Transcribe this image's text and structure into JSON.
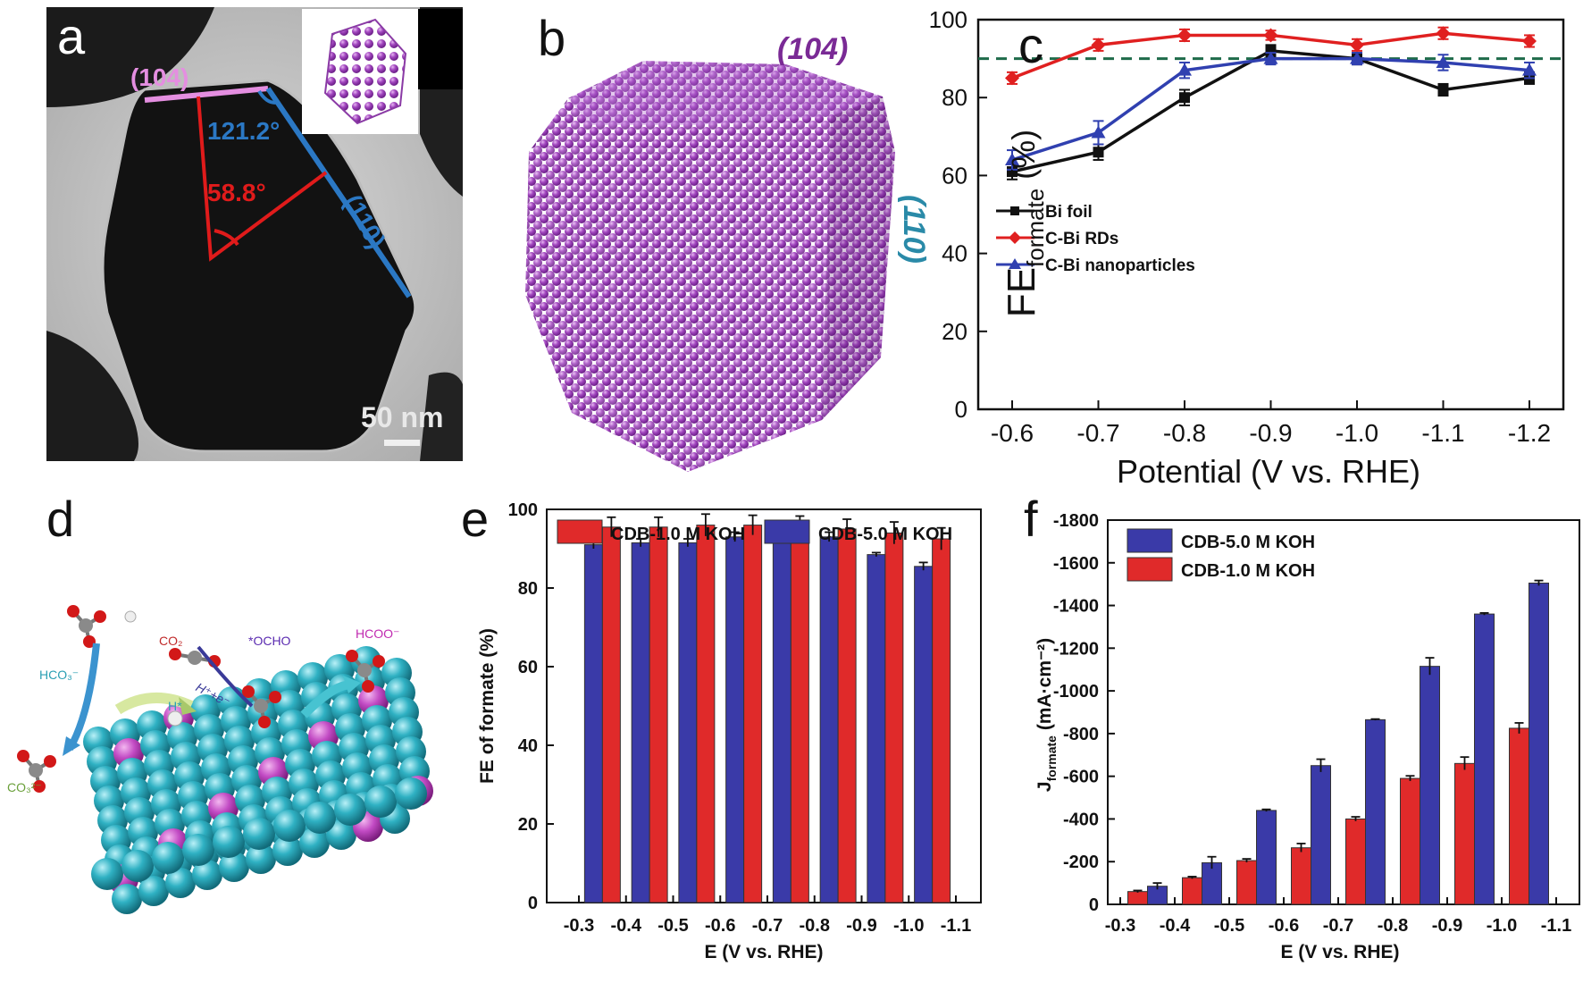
{
  "panels": {
    "a": {
      "letter": "a",
      "facet_top": "(104)",
      "facet_side": "(110)",
      "angle_obtuse": "121.2°",
      "angle_acute": "58.8°",
      "scale": "50 nm",
      "colors": {
        "facet_top": "#e48ee0",
        "facet_side": "#2b78c4",
        "angle": "#e01b1b"
      }
    },
    "b": {
      "letter": "b",
      "facet_top": "(104)",
      "facet_side": "(110)",
      "colors": {
        "sphere": "#9b3fb5",
        "top": "#7a2a95",
        "side": "#2a8aa8"
      }
    },
    "d": {
      "letter": "d",
      "labels": {
        "hco3": "HCO₃⁻",
        "co2": "CO₂",
        "ocho": "*OCHO",
        "hcoo": "HCOO⁻",
        "h": "H*",
        "proton": "H⁺+e⁻",
        "co3": "CO₃²⁻"
      },
      "colors": {
        "surface": "#27a6b8",
        "site": "#b845b8",
        "oxygen": "#d21818",
        "carbon": "#8a8a8a"
      }
    }
  },
  "chart_data": [
    {
      "panel": "c",
      "type": "line",
      "title": "",
      "xlabel": "Potential (V vs. RHE)",
      "ylabel_main": "FE",
      "ylabel_sub": "formate",
      "ylabel_unit": "(%)",
      "categories": [
        "-0.6",
        "-0.7",
        "-0.8",
        "-0.9",
        "-1.0",
        "-1.1",
        "-1.2"
      ],
      "ylim": [
        0,
        100
      ],
      "yticks": [
        0,
        20,
        40,
        60,
        80,
        100
      ],
      "reference_line": 90,
      "legend_position": "center-left",
      "series": [
        {
          "name": "Bi foil",
          "color": "#111111",
          "marker": "square",
          "values": [
            61,
            66,
            80,
            92,
            90,
            82,
            85
          ],
          "errors": [
            2,
            2,
            2,
            1.5,
            1.5,
            1.5,
            1.5
          ]
        },
        {
          "name": "C-Bi RDs",
          "color": "#e02020",
          "marker": "diamond",
          "values": [
            85,
            93.5,
            96,
            96,
            93.5,
            96.5,
            94.5
          ],
          "errors": [
            1.5,
            1.5,
            1.5,
            1.2,
            1.5,
            1.5,
            1.5
          ]
        },
        {
          "name": "C-Bi nanoparticles",
          "color": "#3040b0",
          "marker": "triangle",
          "values": [
            64,
            71,
            87,
            90,
            90,
            89,
            87
          ],
          "errors": [
            2.5,
            3,
            2,
            1.5,
            1.5,
            2,
            2
          ]
        }
      ]
    },
    {
      "panel": "e",
      "type": "bar",
      "xlabel": "E (V vs. RHE)",
      "ylabel": "FE of formate (%)",
      "xticks": [
        "-0.3",
        "-0.4",
        "-0.5",
        "-0.6",
        "-0.7",
        "-0.8",
        "-0.9",
        "-1.0",
        "-1.1"
      ],
      "ylim": [
        0,
        100
      ],
      "yticks": [
        0,
        20,
        40,
        60,
        80,
        100
      ],
      "legend_position": "top",
      "series": [
        {
          "name": "CDB-5.0 M KOH",
          "color": "#3a3aa8",
          "values": [
            91,
            91.5,
            91.5,
            93,
            94.5,
            93,
            88.5,
            85.5
          ],
          "errors": [
            1,
            1,
            1,
            1.2,
            0.5,
            1.2,
            0.5,
            1
          ]
        },
        {
          "name": "CDB-1.0 M KOH",
          "color": "#e02a2a",
          "values": [
            95.5,
            95.5,
            96,
            96,
            95.5,
            95,
            94,
            92.5
          ],
          "errors": [
            2.5,
            2.5,
            2.8,
            2.5,
            2.8,
            2.5,
            2.8,
            2.8
          ]
        }
      ],
      "legend_order": [
        "CDB-1.0 M KOH",
        "CDB-5.0 M KOH"
      ]
    },
    {
      "panel": "f",
      "type": "bar",
      "xlabel": "E (V vs. RHE)",
      "ylabel_main": "J",
      "ylabel_sub": "formate",
      "ylabel_unit": " (mA·cm⁻²)",
      "xticks": [
        "-0.3",
        "-0.4",
        "-0.5",
        "-0.6",
        "-0.7",
        "-0.8",
        "-0.9",
        "-1.0",
        "-1.1"
      ],
      "ylim": [
        0,
        -1800
      ],
      "yticks": [
        "0",
        "-200",
        "-400",
        "-600",
        "-800",
        "-1000",
        "-1200",
        "-1400",
        "-1600",
        "-1800"
      ],
      "legend_position": "top-left",
      "series": [
        {
          "name": "CDB-1.0 M KOH",
          "color": "#e02a2a",
          "values": [
            -60,
            -125,
            -205,
            -265,
            -400,
            -590,
            -660,
            -825
          ],
          "errors": [
            5,
            5,
            8,
            20,
            10,
            12,
            30,
            25
          ]
        },
        {
          "name": "CDB-5.0 M KOH",
          "color": "#3a3aa8",
          "values": [
            -85,
            -195,
            -440,
            -650,
            -865,
            -1115,
            -1360,
            -1505
          ],
          "errors": [
            15,
            28,
            5,
            30,
            3,
            40,
            5,
            12
          ]
        }
      ],
      "legend_order": [
        "CDB-5.0 M KOH",
        "CDB-1.0 M KOH"
      ]
    }
  ]
}
